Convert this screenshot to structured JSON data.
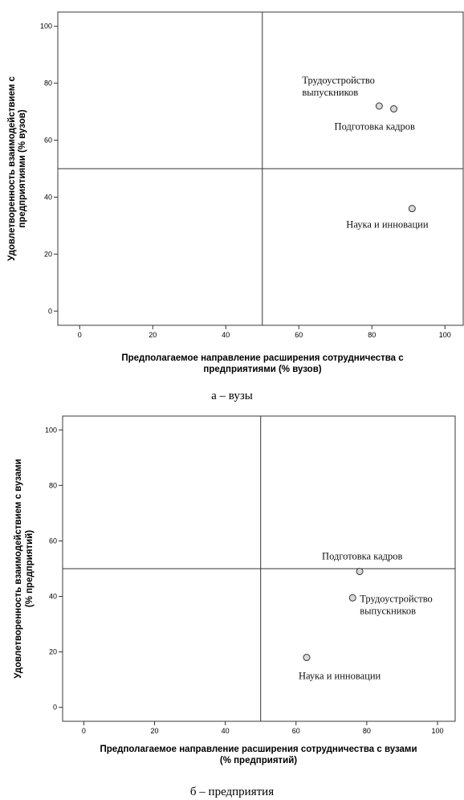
{
  "chart_data": [
    {
      "type": "scatter",
      "caption": "а – вузы",
      "xlabel": "Предполагаемое направление расширения сотрудничества с предприятиями (% вузов)",
      "ylabel": "Удовлетворенность взаимодействием с предприятиями (% вузов)",
      "xlabel_lines": [
        "Предполагаемое направление расширения сотрудничества с",
        "предприятиями (% вузов)"
      ],
      "ylabel_lines": [
        "Удовлетворенность взаимодействием с",
        "предприятиями (% вузов)"
      ],
      "xlim": [
        -6,
        105
      ],
      "ylim": [
        -5,
        105
      ],
      "xticks": [
        0,
        20,
        40,
        60,
        80,
        100
      ],
      "yticks": [
        0,
        20,
        40,
        60,
        80,
        100
      ],
      "reference_lines": {
        "x": 50,
        "y": 50
      },
      "points": [
        {
          "label_lines": [
            "Трудоустройство",
            "выпускников"
          ],
          "x": 82,
          "y": 72
        },
        {
          "label_lines": [
            "Подготовка кадров"
          ],
          "x": 86,
          "y": 71
        },
        {
          "label_lines": [
            "Наука и инновации"
          ],
          "x": 91,
          "y": 36
        }
      ]
    },
    {
      "type": "scatter",
      "caption": "б – предприятия",
      "xlabel": "Предполагаемое направление расширения сотрудничества с вузами (% предприятий)",
      "ylabel": "Удовлетворенность взаимодействием с вузами (% предприятий)",
      "xlabel_lines": [
        "Предполагаемое направление расширения сотрудничества с вузами",
        "(% предприятий)"
      ],
      "ylabel_lines": [
        "Удовлетворенность взаимодействием с вузами",
        "(% предприятий)"
      ],
      "xlim": [
        -6,
        105
      ],
      "ylim": [
        -5,
        105
      ],
      "xticks": [
        0,
        20,
        40,
        60,
        80,
        100
      ],
      "yticks": [
        0,
        20,
        40,
        60,
        80,
        100
      ],
      "reference_lines": {
        "x": 50,
        "y": 50
      },
      "points": [
        {
          "label_lines": [
            "Подготовка кадров"
          ],
          "x": 78,
          "y": 49
        },
        {
          "label_lines": [
            "Трудоустройство",
            "выпускников"
          ],
          "x": 76,
          "y": 39.5
        },
        {
          "label_lines": [
            "Наука и инновации"
          ],
          "x": 63,
          "y": 18
        }
      ]
    }
  ]
}
